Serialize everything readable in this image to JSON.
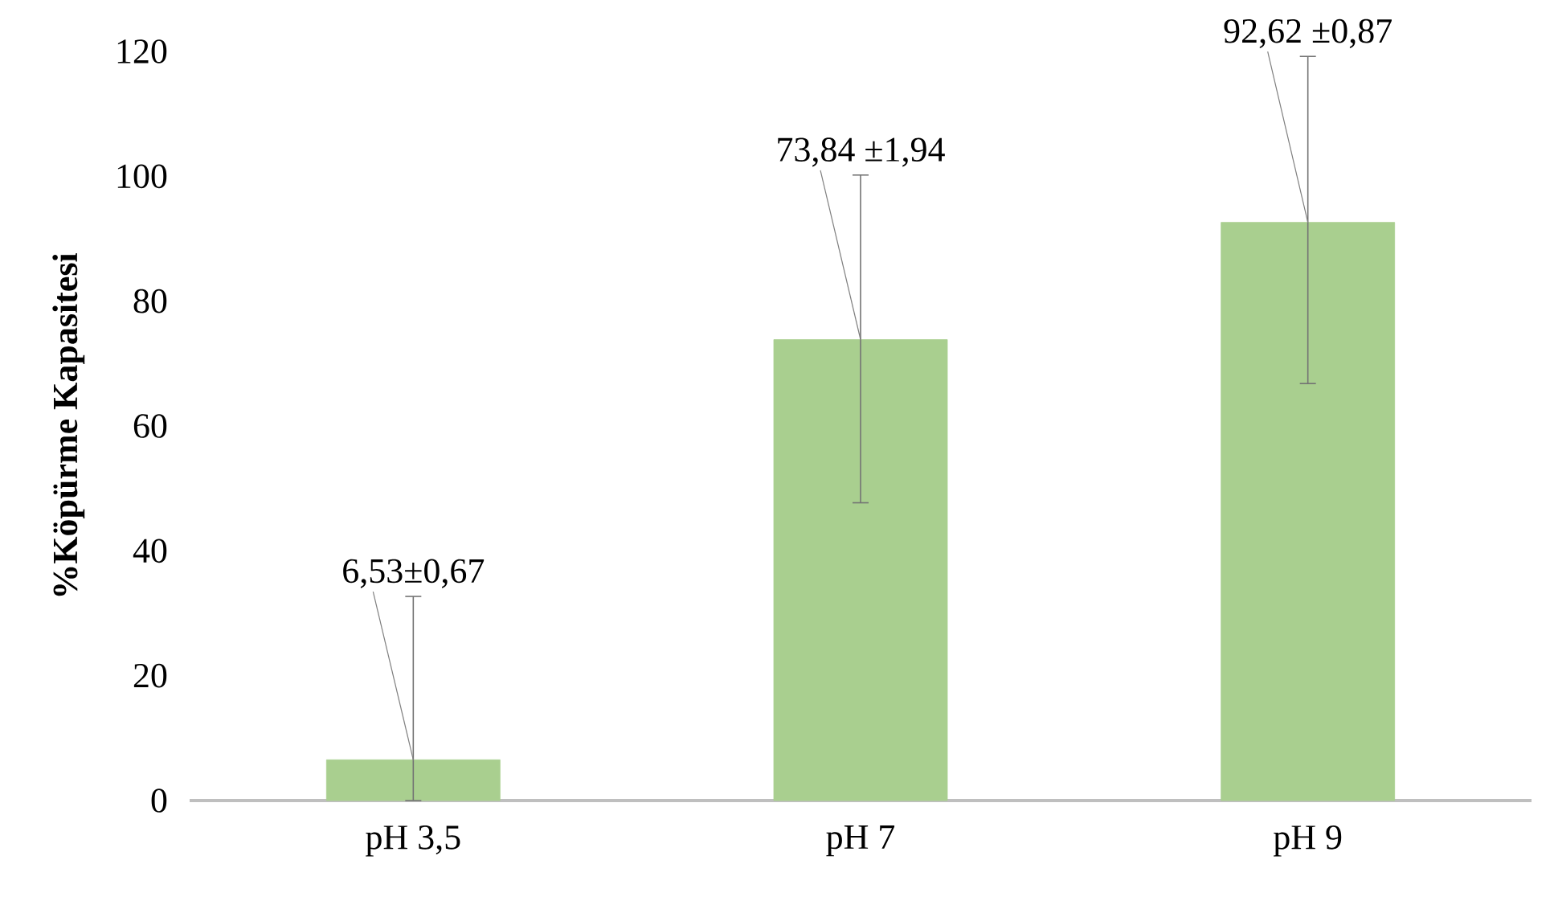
{
  "chart_data": {
    "type": "bar",
    "ylabel": "%Köpürme Kapasitesi",
    "categories": [
      "pH 3,5",
      "pH 7",
      "pH 9"
    ],
    "values": [
      6.53,
      73.84,
      92.62
    ],
    "errors": [
      [
        0,
        32.7
      ],
      [
        47.7,
        100.2
      ],
      [
        66.8,
        119.2
      ]
    ],
    "value_labels": [
      "6,53±0,67",
      "73,84 ±1,94",
      "92,62 ±0,87"
    ],
    "color": "#a9cf8f",
    "ylim": [
      0,
      120
    ],
    "yticks": [
      0,
      20,
      40,
      60,
      80,
      100,
      120
    ],
    "grid": false
  }
}
